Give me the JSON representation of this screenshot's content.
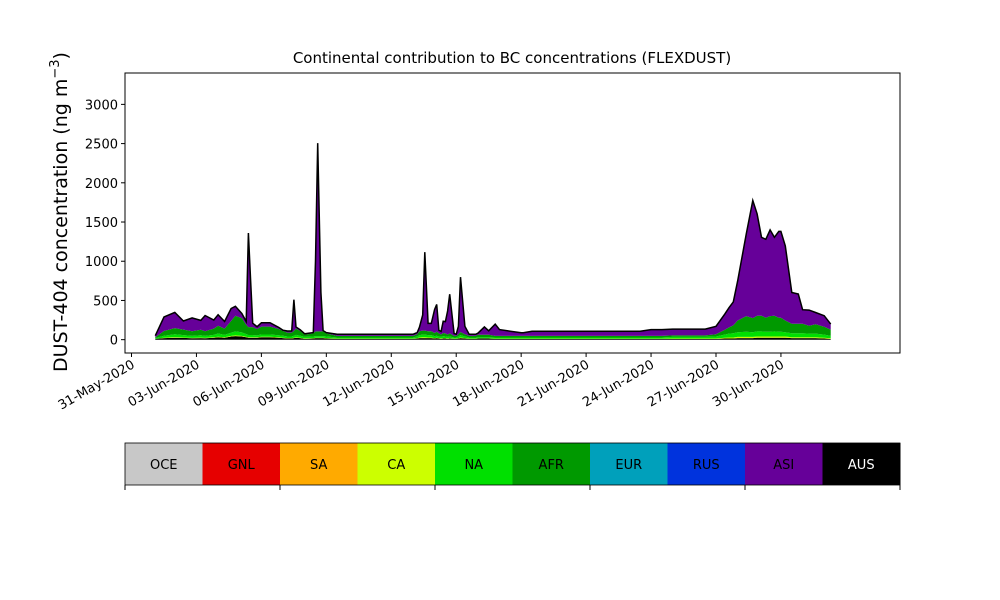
{
  "chart_data": {
    "type": "area",
    "title": "Continental contribution to BC concentrations (FLEXDUST)",
    "ylabel_main": "DUST-404 concentration (ng m",
    "ylabel_exp": "−3",
    "ylabel_close": ")",
    "xlabel": "",
    "ylim": [
      -170,
      3400
    ],
    "xlim": [
      -0.3,
      35.5
    ],
    "yticks": [
      0,
      500,
      1000,
      1500,
      2000,
      2500,
      3000
    ],
    "x_tick_labels": [
      "31-May-2020",
      "03-Jun-2020",
      "06-Jun-2020",
      "09-Jun-2020",
      "12-Jun-2020",
      "15-Jun-2020",
      "18-Jun-2020",
      "21-Jun-2020",
      "24-Jun-2020",
      "27-Jun-2020",
      "30-Jun-2020"
    ],
    "x_tick_days": [
      0,
      3,
      6,
      9,
      12,
      15,
      18,
      21,
      24,
      27,
      30
    ],
    "x_axis_note": "x values are days after 31-May-2020",
    "x": [
      1.1,
      1.5,
      2.0,
      2.4,
      2.8,
      3.2,
      3.4,
      3.8,
      4.0,
      4.3,
      4.6,
      4.8,
      5.1,
      5.3,
      5.4,
      5.5,
      5.6,
      5.8,
      6.0,
      6.4,
      6.8,
      7.0,
      7.2,
      7.4,
      7.5,
      7.6,
      7.8,
      8.0,
      8.4,
      8.5,
      8.6,
      8.75,
      8.85,
      9.0,
      9.5,
      10.0,
      10.5,
      11.0,
      11.5,
      12.0,
      12.5,
      13.0,
      13.2,
      13.3,
      13.45,
      13.55,
      13.7,
      13.85,
      14.0,
      14.1,
      14.2,
      14.3,
      14.4,
      14.5,
      14.6,
      14.7,
      14.9,
      15.0,
      15.1,
      15.2,
      15.4,
      15.6,
      15.9,
      16.0,
      16.3,
      16.5,
      16.8,
      17.0,
      17.5,
      18.0,
      18.1,
      18.5,
      19.0,
      19.5,
      20.0,
      20.5,
      21.0,
      21.5,
      22.0,
      22.5,
      23.0,
      23.5,
      24.0,
      24.5,
      25.0,
      25.5,
      26.0,
      26.5,
      27.0,
      27.4,
      27.6,
      27.8,
      28.0,
      28.4,
      28.7,
      28.9,
      29.1,
      29.3,
      29.5,
      29.7,
      29.9,
      30.0,
      30.2,
      30.5,
      30.8,
      31.0,
      31.3,
      31.6,
      32.0,
      32.3
    ],
    "series": [
      {
        "name": "AUS",
        "color": "#000000",
        "values": [
          10,
          20,
          25,
          22,
          18,
          20,
          18,
          25,
          30,
          25,
          40,
          45,
          40,
          30,
          25,
          25,
          25,
          25,
          30,
          30,
          25,
          20,
          15,
          15,
          20,
          25,
          20,
          10,
          15,
          20,
          20,
          20,
          20,
          15,
          10,
          10,
          10,
          10,
          10,
          10,
          10,
          10,
          15,
          20,
          20,
          20,
          20,
          20,
          15,
          20,
          15,
          10,
          15,
          15,
          10,
          15,
          10,
          10,
          15,
          20,
          15,
          10,
          10,
          15,
          15,
          15,
          10,
          10,
          10,
          10,
          10,
          10,
          10,
          10,
          10,
          10,
          10,
          10,
          10,
          10,
          10,
          10,
          10,
          10,
          10,
          10,
          10,
          10,
          10,
          15,
          15,
          15,
          20,
          20,
          20,
          25,
          25,
          25,
          25,
          25,
          25,
          25,
          25,
          20,
          20,
          20,
          20,
          20,
          15,
          10
        ]
      },
      {
        "name": "OCE",
        "color": "#c8c8c8",
        "values": [
          0,
          0,
          0,
          0,
          0,
          0,
          0,
          0,
          0,
          0,
          0,
          0,
          0,
          0,
          0,
          0,
          0,
          0,
          0,
          0,
          0,
          0,
          0,
          0,
          0,
          0,
          0,
          0,
          0,
          0,
          0,
          0,
          0,
          0,
          0,
          0,
          0,
          0,
          0,
          0,
          0,
          0,
          0,
          0,
          0,
          0,
          0,
          0,
          0,
          0,
          0,
          0,
          0,
          0,
          0,
          0,
          0,
          0,
          0,
          0,
          0,
          0,
          0,
          0,
          0,
          0,
          0,
          0,
          0,
          0,
          0,
          0,
          0,
          0,
          0,
          0,
          0,
          0,
          0,
          0,
          0,
          0,
          0,
          0,
          0,
          0,
          0,
          0,
          0,
          0,
          0,
          0,
          0,
          0,
          0,
          0,
          0,
          0,
          0,
          0,
          0,
          0,
          0,
          0,
          0,
          0,
          0,
          0,
          0,
          0
        ]
      },
      {
        "name": "GNL",
        "color": "#e60000",
        "values": [
          0,
          0,
          0,
          0,
          0,
          0,
          0,
          0,
          0,
          0,
          0,
          0,
          0,
          0,
          0,
          0,
          0,
          0,
          0,
          0,
          0,
          0,
          0,
          0,
          0,
          0,
          0,
          0,
          0,
          0,
          0,
          0,
          0,
          0,
          0,
          0,
          0,
          0,
          0,
          0,
          0,
          0,
          0,
          0,
          0,
          0,
          0,
          0,
          0,
          0,
          0,
          0,
          0,
          0,
          0,
          0,
          0,
          0,
          0,
          0,
          0,
          0,
          0,
          0,
          0,
          0,
          0,
          0,
          0,
          0,
          0,
          0,
          0,
          0,
          0,
          0,
          0,
          0,
          0,
          0,
          0,
          0,
          0,
          0,
          0,
          0,
          0,
          0,
          0,
          0,
          0,
          0,
          0,
          0,
          0,
          0,
          0,
          0,
          0,
          0,
          0,
          0,
          0,
          0,
          0,
          0,
          0,
          0,
          0,
          0
        ]
      },
      {
        "name": "SA",
        "color": "#ffaa00",
        "values": [
          0,
          0,
          0,
          0,
          0,
          0,
          0,
          0,
          0,
          0,
          0,
          0,
          0,
          0,
          0,
          0,
          0,
          0,
          0,
          0,
          0,
          0,
          0,
          0,
          0,
          0,
          0,
          0,
          0,
          0,
          0,
          0,
          0,
          0,
          0,
          0,
          0,
          0,
          0,
          0,
          0,
          0,
          0,
          0,
          0,
          0,
          0,
          0,
          0,
          0,
          0,
          0,
          0,
          0,
          0,
          0,
          0,
          0,
          0,
          0,
          0,
          0,
          0,
          0,
          0,
          0,
          0,
          0,
          0,
          0,
          0,
          0,
          0,
          0,
          0,
          0,
          0,
          0,
          0,
          0,
          0,
          0,
          0,
          0,
          0,
          0,
          0,
          0,
          0,
          0,
          0,
          0,
          0,
          0,
          0,
          0,
          0,
          0,
          0,
          0,
          0,
          0,
          0,
          0,
          0,
          0,
          0,
          0,
          0,
          0
        ]
      },
      {
        "name": "CA",
        "color": "#ccff00",
        "values": [
          0,
          5,
          8,
          6,
          5,
          6,
          5,
          6,
          8,
          6,
          8,
          10,
          8,
          6,
          5,
          5,
          5,
          5,
          6,
          6,
          6,
          5,
          5,
          5,
          5,
          6,
          5,
          5,
          5,
          5,
          5,
          5,
          5,
          5,
          3,
          3,
          3,
          3,
          3,
          3,
          3,
          3,
          5,
          8,
          10,
          10,
          8,
          8,
          5,
          5,
          5,
          5,
          5,
          5,
          5,
          5,
          3,
          3,
          5,
          8,
          5,
          3,
          3,
          3,
          3,
          3,
          3,
          3,
          3,
          3,
          3,
          3,
          3,
          3,
          3,
          3,
          3,
          3,
          3,
          3,
          3,
          3,
          3,
          3,
          5,
          5,
          5,
          5,
          5,
          10,
          12,
          12,
          15,
          15,
          15,
          15,
          15,
          15,
          15,
          15,
          15,
          15,
          15,
          12,
          12,
          12,
          12,
          12,
          10,
          8
        ]
      },
      {
        "name": "NA",
        "color": "#00e000",
        "values": [
          10,
          25,
          35,
          30,
          25,
          30,
          25,
          30,
          40,
          30,
          40,
          50,
          45,
          35,
          30,
          30,
          30,
          25,
          30,
          30,
          25,
          25,
          20,
          20,
          25,
          30,
          25,
          20,
          20,
          20,
          20,
          20,
          20,
          20,
          15,
          15,
          15,
          15,
          15,
          15,
          15,
          15,
          20,
          30,
          35,
          35,
          30,
          30,
          25,
          25,
          20,
          20,
          25,
          20,
          20,
          20,
          15,
          15,
          20,
          30,
          20,
          15,
          15,
          15,
          15,
          15,
          15,
          15,
          15,
          15,
          15,
          15,
          15,
          15,
          15,
          15,
          15,
          15,
          15,
          15,
          15,
          15,
          15,
          15,
          20,
          20,
          20,
          20,
          25,
          40,
          50,
          55,
          60,
          65,
          60,
          65,
          65,
          60,
          60,
          65,
          60,
          60,
          55,
          50,
          50,
          50,
          45,
          45,
          40,
          30
        ]
      },
      {
        "name": "AFR",
        "color": "#009900",
        "values": [
          10,
          60,
          80,
          70,
          60,
          70,
          60,
          80,
          100,
          80,
          150,
          200,
          180,
          120,
          100,
          100,
          100,
          80,
          100,
          100,
          80,
          60,
          50,
          50,
          60,
          80,
          60,
          30,
          40,
          60,
          60,
          60,
          60,
          40,
          20,
          20,
          20,
          20,
          20,
          20,
          20,
          20,
          30,
          50,
          50,
          50,
          50,
          50,
          40,
          50,
          40,
          30,
          40,
          40,
          30,
          40,
          20,
          20,
          30,
          40,
          30,
          20,
          20,
          30,
          30,
          30,
          20,
          20,
          20,
          20,
          20,
          20,
          20,
          20,
          20,
          20,
          20,
          20,
          20,
          20,
          20,
          20,
          20,
          20,
          20,
          20,
          20,
          20,
          30,
          60,
          80,
          100,
          150,
          200,
          180,
          200,
          200,
          180,
          200,
          200,
          180,
          180,
          150,
          120,
          120,
          120,
          100,
          120,
          100,
          80
        ]
      },
      {
        "name": "EUR",
        "color": "#00a0bb",
        "values": [
          0,
          0,
          0,
          0,
          0,
          0,
          0,
          0,
          0,
          0,
          0,
          0,
          0,
          0,
          0,
          0,
          0,
          0,
          0,
          0,
          0,
          0,
          0,
          0,
          0,
          0,
          0,
          0,
          0,
          0,
          0,
          0,
          0,
          0,
          0,
          0,
          0,
          0,
          0,
          0,
          0,
          0,
          0,
          0,
          0,
          0,
          0,
          0,
          0,
          0,
          0,
          0,
          0,
          0,
          0,
          0,
          0,
          0,
          0,
          0,
          0,
          0,
          0,
          0,
          0,
          0,
          0,
          0,
          0,
          0,
          0,
          0,
          0,
          0,
          0,
          0,
          0,
          0,
          0,
          0,
          0,
          0,
          0,
          0,
          0,
          0,
          0,
          0,
          0,
          0,
          0,
          0,
          0,
          0,
          0,
          0,
          0,
          0,
          0,
          0,
          0,
          0,
          0,
          0,
          0,
          0,
          0,
          0,
          0,
          0
        ]
      },
      {
        "name": "RUS",
        "color": "#0033dd",
        "values": [
          0,
          0,
          0,
          0,
          0,
          0,
          0,
          0,
          0,
          0,
          0,
          0,
          0,
          0,
          0,
          0,
          0,
          0,
          0,
          0,
          0,
          0,
          0,
          0,
          0,
          0,
          0,
          0,
          0,
          0,
          0,
          0,
          0,
          0,
          0,
          0,
          0,
          0,
          0,
          0,
          0,
          0,
          0,
          0,
          0,
          0,
          0,
          0,
          0,
          0,
          0,
          0,
          0,
          0,
          0,
          0,
          0,
          0,
          0,
          0,
          0,
          0,
          0,
          0,
          0,
          0,
          0,
          0,
          0,
          0,
          0,
          0,
          0,
          0,
          0,
          0,
          0,
          0,
          0,
          0,
          0,
          0,
          0,
          0,
          0,
          0,
          0,
          0,
          0,
          0,
          0,
          0,
          0,
          0,
          0,
          0,
          0,
          0,
          0,
          0,
          0,
          0,
          0,
          0,
          0,
          0,
          0,
          0,
          0,
          0
        ]
      },
      {
        "name": "ASI",
        "color": "#660099",
        "values": [
          20,
          180,
          200,
          110,
          170,
          120,
          200,
          110,
          140,
          90,
          160,
          120,
          60,
          40,
          1200,
          600,
          50,
          30,
          50,
          50,
          20,
          10,
          20,
          20,
          400,
          20,
          15,
          10,
          10,
          900,
          2400,
          500,
          10,
          10,
          20,
          20,
          20,
          20,
          20,
          20,
          20,
          20,
          20,
          50,
          200,
          1000,
          100,
          100,
          300,
          350,
          40,
          40,
          150,
          150,
          300,
          500,
          30,
          20,
          100,
          700,
          100,
          20,
          20,
          20,
          100,
          50,
          150,
          80,
          60,
          40,
          40,
          60,
          60,
          60,
          60,
          60,
          60,
          60,
          60,
          60,
          60,
          60,
          80,
          80,
          80,
          80,
          80,
          80,
          100,
          200,
          250,
          300,
          500,
          1050,
          1500,
          1300,
          1000,
          1000,
          1100,
          1000,
          1100,
          1100,
          950,
          400,
          380,
          180,
          200,
          150,
          140,
          70
        ]
      }
    ],
    "legend": {
      "items": [
        "OCE",
        "GNL",
        "SA",
        "CA",
        "NA",
        "AFR",
        "EUR",
        "RUS",
        "ASI",
        "AUS"
      ],
      "colors": [
        "#c8c8c8",
        "#e60000",
        "#ffaa00",
        "#ccff00",
        "#00e000",
        "#009900",
        "#00a0bb",
        "#0033dd",
        "#660099",
        "#000000"
      ],
      "text_colors": [
        "#000000",
        "#000000",
        "#000000",
        "#000000",
        "#000000",
        "#000000",
        "#000000",
        "#000000",
        "#000000",
        "#ffffff"
      ]
    },
    "grid": false
  }
}
